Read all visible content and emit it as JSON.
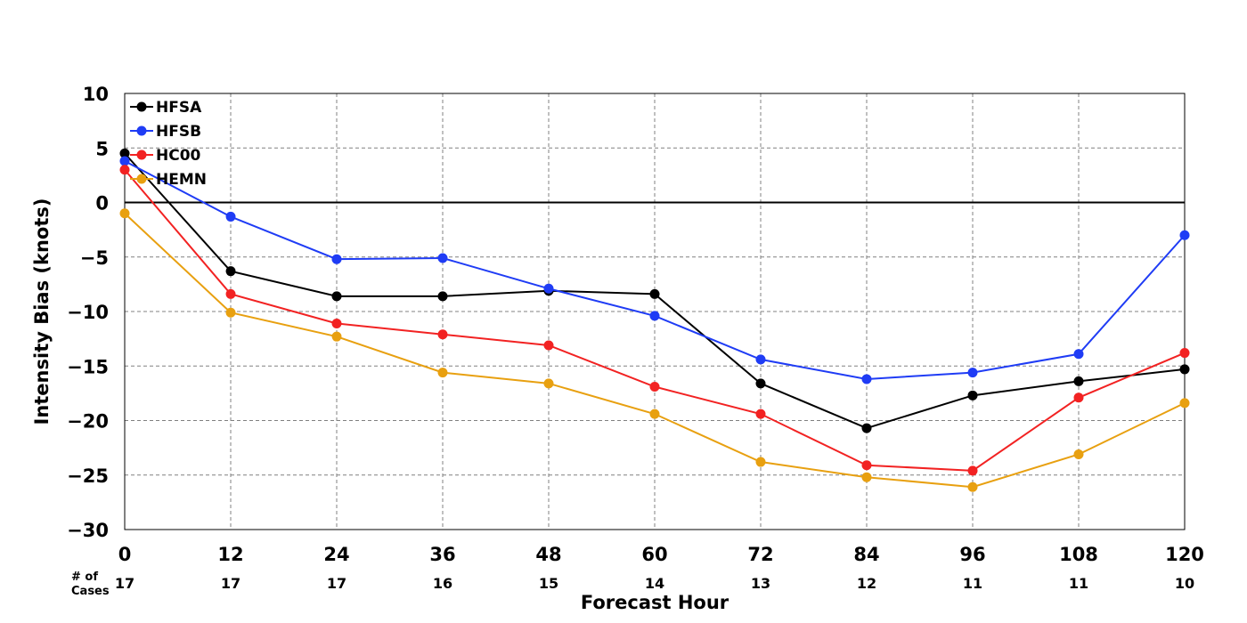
{
  "chart_data": {
    "type": "line",
    "xlabel": "Forecast Hour",
    "ylabel": "Intensity Bias (knots)",
    "x": [
      0,
      12,
      24,
      36,
      48,
      60,
      72,
      84,
      96,
      108,
      120
    ],
    "xlim": [
      0,
      120
    ],
    "ylim": [
      -30,
      10
    ],
    "x_ticks": [
      "0",
      "12",
      "24",
      "36",
      "48",
      "60",
      "72",
      "84",
      "96",
      "108",
      "120"
    ],
    "y_ticks": [
      "10",
      "5",
      "0",
      "−5",
      "−10",
      "−15",
      "−20",
      "−25",
      "−30"
    ],
    "y_tick_values": [
      10,
      5,
      0,
      -5,
      -10,
      -15,
      -20,
      -25,
      -30
    ],
    "grid": true,
    "legend_position": "top-left",
    "cases_label_line1": "# of",
    "cases_label_line2": "Cases",
    "cases": [
      "17",
      "17",
      "17",
      "16",
      "15",
      "14",
      "13",
      "12",
      "11",
      "11",
      "10"
    ],
    "series": [
      {
        "name": "HFSA",
        "color": "#000000",
        "values": [
          4.5,
          -6.3,
          -8.6,
          -8.6,
          -8.1,
          -8.4,
          -16.6,
          -20.7,
          -17.7,
          -16.4,
          -15.3
        ]
      },
      {
        "name": "HFSB",
        "color": "#1f3cf5",
        "values": [
          3.8,
          -1.3,
          -5.2,
          -5.1,
          -7.9,
          -10.4,
          -14.4,
          -16.2,
          -15.6,
          -13.9,
          -3.0
        ]
      },
      {
        "name": "HC00",
        "color": "#f22222",
        "values": [
          3.0,
          -8.4,
          -11.1,
          -12.1,
          -13.1,
          -16.9,
          -19.4,
          -24.1,
          -24.6,
          -17.9,
          -13.8
        ]
      },
      {
        "name": "HEMN",
        "color": "#e8a010",
        "values": [
          -1.0,
          -10.1,
          -12.3,
          -15.6,
          -16.6,
          -19.4,
          -23.8,
          -25.2,
          -26.1,
          -23.1,
          -18.4
        ]
      }
    ]
  }
}
